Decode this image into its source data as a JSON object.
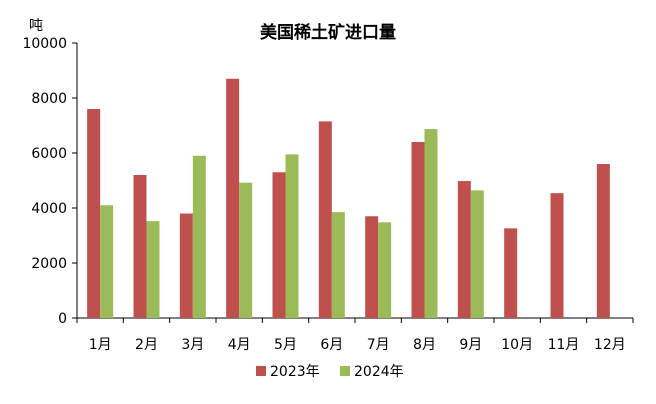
{
  "chart_data": {
    "type": "bar",
    "title": "美国稀土矿进口量",
    "y_unit": "吨",
    "xlabel": "",
    "ylabel": "",
    "categories": [
      "1月",
      "2月",
      "3月",
      "4月",
      "5月",
      "6月",
      "7月",
      "8月",
      "9月",
      "10月",
      "11月",
      "12月"
    ],
    "series": [
      {
        "name": "2023年",
        "color": "#c0504d",
        "values": [
          7600,
          5200,
          3800,
          8700,
          5300,
          7150,
          3700,
          6400,
          4980,
          3260,
          4540,
          5600
        ]
      },
      {
        "name": "2024年",
        "color": "#9bbb59",
        "values": [
          4100,
          3520,
          5900,
          4920,
          5950,
          3850,
          3480,
          6870,
          4640,
          null,
          null,
          null
        ]
      }
    ],
    "ylim": [
      0,
      10000
    ],
    "yticks": [
      0,
      2000,
      4000,
      6000,
      8000,
      10000
    ],
    "grid": false,
    "legend_position": "bottom"
  }
}
